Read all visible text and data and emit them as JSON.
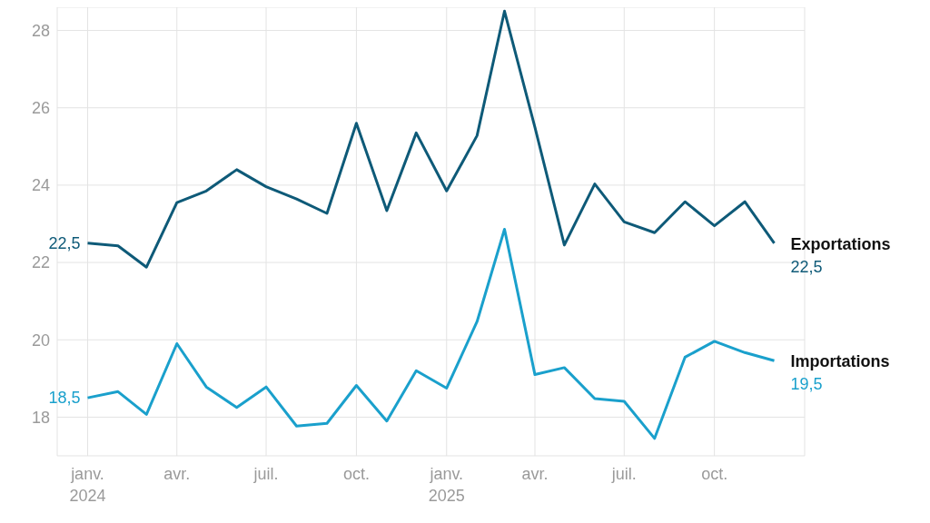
{
  "chart_data": {
    "type": "line",
    "x": [
      "2024-01",
      "2024-02",
      "2024-03",
      "2024-04",
      "2024-05",
      "2024-06",
      "2024-07",
      "2024-08",
      "2024-09",
      "2024-10",
      "2024-11",
      "2024-12",
      "2025-01",
      "2025-02",
      "2025-03",
      "2025-04",
      "2025-05",
      "2025-06",
      "2025-07",
      "2025-08",
      "2025-09",
      "2025-10",
      "2025-11",
      "2025-12"
    ],
    "series": [
      {
        "name": "Exportations",
        "color": "#0e5a78",
        "values": [
          22.5,
          22.43,
          21.88,
          23.55,
          23.85,
          24.4,
          23.96,
          23.64,
          23.27,
          25.6,
          23.34,
          25.35,
          23.85,
          25.28,
          28.5,
          25.5,
          22.45,
          24.03,
          23.05,
          22.77,
          23.57,
          22.95,
          23.57,
          22.5
        ],
        "value_labels": [
          "22,5",
          null,
          null,
          null,
          null,
          null,
          null,
          null,
          null,
          null,
          null,
          null,
          null,
          null,
          null,
          null,
          null,
          null,
          null,
          null,
          null,
          null,
          null,
          "22,5"
        ]
      },
      {
        "name": "Importations",
        "color": "#1aa0cc",
        "values": [
          18.5,
          18.66,
          18.07,
          19.9,
          18.78,
          18.25,
          18.78,
          17.77,
          17.84,
          18.82,
          17.9,
          19.2,
          18.75,
          20.47,
          22.86,
          19.1,
          19.28,
          18.48,
          18.41,
          17.45,
          19.55,
          19.96,
          19.67,
          19.46
        ],
        "value_labels": [
          "18,5",
          null,
          null,
          null,
          null,
          null,
          null,
          null,
          null,
          null,
          null,
          null,
          null,
          null,
          null,
          null,
          null,
          null,
          null,
          null,
          null,
          null,
          null,
          "19,5"
        ]
      }
    ],
    "xlim": [
      "2023-12",
      "2026-01"
    ],
    "xticks": [
      {
        "value": "2024-01",
        "label": "janv.\n2024"
      },
      {
        "value": "2024-04",
        "label": "avr."
      },
      {
        "value": "2024-07",
        "label": "juil."
      },
      {
        "value": "2024-10",
        "label": "oct."
      },
      {
        "value": "2025-01",
        "label": "janv.\n2025"
      },
      {
        "value": "2025-04",
        "label": "avr."
      },
      {
        "value": "2025-07",
        "label": "juil."
      },
      {
        "value": "2025-10",
        "label": "oct."
      }
    ],
    "ylim": [
      17,
      28.6
    ],
    "yticks": [
      18,
      20,
      22,
      24,
      26,
      28
    ],
    "grid": true,
    "marker": "none",
    "legend": false
  }
}
